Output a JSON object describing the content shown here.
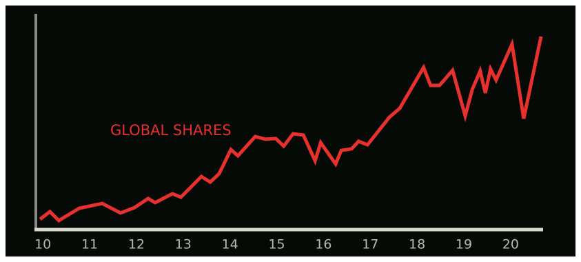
{
  "chart_data": {
    "type": "line",
    "x": [
      9.94,
      10.15,
      10.34,
      10.78,
      11.27,
      11.66,
      11.96,
      12.25,
      12.4,
      12.77,
      12.95,
      13.39,
      13.58,
      13.77,
      14.02,
      14.17,
      14.54,
      14.76,
      14.98,
      15.15,
      15.35,
      15.57,
      15.82,
      15.94,
      16.26,
      16.38,
      16.6,
      16.75,
      16.94,
      17.41,
      17.63,
      18.14,
      18.29,
      18.48,
      18.76,
      19.03,
      19.18,
      19.35,
      19.46,
      19.57,
      19.69,
      20.03,
      20.28,
      20.65
    ],
    "series": [
      {
        "name": "GLOBAL SHARES",
        "color": "#e8302c",
        "values": [
          4.8,
          8.3,
          4.2,
          9.9,
          12.1,
          7.7,
          10.2,
          14.4,
          12.5,
          16.6,
          15.0,
          24.6,
          22.0,
          25.9,
          37.1,
          34.2,
          43.1,
          41.9,
          42.2,
          38.7,
          44.4,
          43.8,
          31.9,
          40.3,
          30.4,
          36.7,
          37.4,
          40.9,
          39.3,
          52.1,
          56.2,
          75.1,
          66.8,
          66.8,
          73.8,
          52.7,
          64.9,
          73.5,
          63.3,
          74.4,
          69.3,
          85.9,
          51.4,
          89.5
        ]
      }
    ],
    "xlim": [
      9.85,
      20.68
    ],
    "xticks": [
      10,
      11,
      12,
      13,
      14,
      15,
      16,
      17,
      18,
      19,
      20
    ],
    "ylim": [
      0,
      100
    ]
  }
}
